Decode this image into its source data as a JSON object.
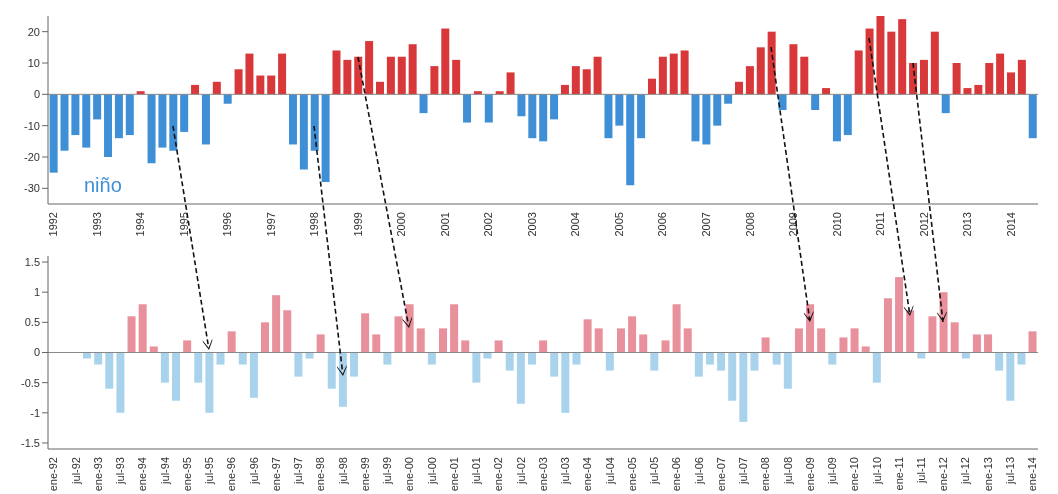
{
  "chart_data": [
    {
      "type": "bar",
      "stacked": true,
      "ylim": [
        -35,
        25
      ],
      "yticks": [
        -30,
        -20,
        -10,
        0,
        10,
        20
      ],
      "annotations": [
        "niño"
      ],
      "categories": [
        "1992",
        null,
        null,
        null,
        "1993",
        null,
        null,
        null,
        "1994",
        null,
        null,
        null,
        "1995",
        null,
        null,
        null,
        "1996",
        null,
        null,
        null,
        "1997",
        null,
        null,
        null,
        "1998",
        null,
        null,
        null,
        "1999",
        null,
        null,
        null,
        "2000",
        null,
        null,
        null,
        "2001",
        null,
        null,
        null,
        "2002",
        null,
        null,
        null,
        "2003",
        null,
        null,
        null,
        "2004",
        null,
        null,
        null,
        "2005",
        null,
        null,
        null,
        "2006",
        null,
        null,
        null,
        "2007",
        null,
        null,
        null,
        "2008",
        null,
        null,
        null,
        "2009",
        null,
        null,
        null,
        "2010",
        null,
        null,
        null,
        "2011",
        null,
        null,
        null,
        "2012",
        null,
        null,
        null,
        "2013",
        null,
        null,
        null,
        "2014",
        null,
        null
      ],
      "series": [
        {
          "color": "#d9383a",
          "values": [
            null,
            null,
            null,
            null,
            null,
            null,
            null,
            null,
            1,
            null,
            null,
            null,
            null,
            3,
            null,
            4,
            null,
            8,
            13,
            6,
            6,
            13,
            null,
            null,
            null,
            null,
            14,
            11,
            12,
            17,
            4,
            12,
            12,
            16,
            null,
            9,
            21,
            11,
            null,
            1,
            null,
            1,
            7,
            null,
            null,
            null,
            null,
            3,
            9,
            8,
            12,
            null,
            null,
            null,
            null,
            5,
            12,
            13,
            14,
            null,
            null,
            null,
            null,
            4,
            9,
            15,
            20,
            null,
            16,
            12,
            null,
            2,
            null,
            null,
            14,
            21,
            25,
            20,
            24,
            10,
            11,
            20,
            null,
            10,
            2,
            3,
            10,
            13,
            7,
            11,
            null
          ]
        },
        {
          "color": "#3f8fd6",
          "values": [
            -25,
            -18,
            -13,
            -17,
            -8,
            -20,
            -14,
            -13,
            null,
            -22,
            -17,
            -18,
            -12,
            null,
            -16,
            null,
            -3,
            null,
            null,
            null,
            null,
            null,
            -16,
            -24,
            -18,
            -28,
            null,
            null,
            null,
            null,
            null,
            null,
            null,
            null,
            -6,
            null,
            null,
            null,
            -9,
            null,
            -9,
            null,
            null,
            -7,
            -14,
            -15,
            -8,
            null,
            null,
            null,
            null,
            -14,
            -10,
            -29,
            -14,
            null,
            null,
            null,
            null,
            -15,
            -16,
            -10,
            -3,
            null,
            null,
            null,
            null,
            -5,
            null,
            null,
            -5,
            null,
            -15,
            -13,
            null,
            null,
            null,
            null,
            null,
            null,
            null,
            null,
            -6,
            null,
            null,
            null,
            null,
            null,
            null,
            null,
            -14
          ]
        }
      ]
    },
    {
      "type": "bar",
      "stacked": true,
      "ylim": [
        -1.6,
        1.6
      ],
      "yticks": [
        -1.5,
        -1,
        -0.5,
        0,
        0.5,
        1,
        1.5
      ],
      "categories": [
        "ene-92",
        null,
        "jul-92",
        null,
        "ene-93",
        null,
        "jul-93",
        null,
        "ene-94",
        null,
        "jul-94",
        null,
        "ene-95",
        null,
        "jul-95",
        null,
        "ene-96",
        null,
        "jul-96",
        null,
        "ene-97",
        null,
        "jul-97",
        null,
        "ene-98",
        null,
        "jul-98",
        null,
        "ene-99",
        null,
        "jul-99",
        null,
        "ene-00",
        null,
        "jul-00",
        null,
        "ene-01",
        null,
        "jul-01",
        null,
        "ene-02",
        null,
        "jul-02",
        null,
        "ene-03",
        null,
        "jul-03",
        null,
        "ene-04",
        null,
        "jul-04",
        null,
        "ene-05",
        null,
        "jul-05",
        null,
        "ene-06",
        null,
        "jul-06",
        null,
        "ene-07",
        null,
        "jul-07",
        null,
        "ene-08",
        null,
        "jul-08",
        null,
        "ene-09",
        null,
        "jul-09",
        null,
        "ene-10",
        null,
        "jul-10",
        null,
        "ene-11",
        null,
        "jul-11",
        null,
        "ene-12",
        null,
        "jul-12",
        null,
        "ene-13",
        null,
        "jul-13",
        null,
        "ene-14"
      ],
      "series": [
        {
          "color": "#e8909c",
          "values": [
            null,
            null,
            null,
            null,
            null,
            null,
            null,
            0.6,
            0.8,
            0.1,
            null,
            null,
            0.2,
            null,
            null,
            null,
            0.35,
            null,
            null,
            0.5,
            0.95,
            0.7,
            null,
            null,
            0.3,
            null,
            null,
            null,
            0.65,
            0.3,
            null,
            0.6,
            0.8,
            0.4,
            null,
            0.4,
            0.8,
            0.2,
            null,
            null,
            0.2,
            null,
            null,
            null,
            0.2,
            null,
            null,
            null,
            0.55,
            0.4,
            null,
            0.4,
            0.6,
            0.3,
            null,
            0.2,
            0.8,
            0.4,
            null,
            null,
            null,
            null,
            null,
            null,
            0.25,
            null,
            null,
            0.4,
            0.8,
            0.4,
            null,
            0.25,
            0.4,
            0.1,
            null,
            0.9,
            1.25,
            0.7,
            null,
            0.6,
            1,
            0.5,
            null,
            0.3,
            0.3,
            null,
            null,
            null,
            0.35
          ]
        },
        {
          "color": "#a9d3ec",
          "values": [
            null,
            null,
            null,
            -0.1,
            -0.2,
            -0.6,
            -1,
            null,
            null,
            null,
            -0.5,
            -0.8,
            null,
            -0.5,
            -1,
            -0.2,
            null,
            -0.2,
            -0.75,
            null,
            null,
            null,
            -0.4,
            -0.1,
            null,
            -0.6,
            -0.9,
            -0.4,
            null,
            null,
            -0.2,
            null,
            null,
            null,
            -0.2,
            null,
            null,
            null,
            -0.5,
            -0.1,
            null,
            -0.3,
            -0.85,
            -0.2,
            null,
            -0.4,
            -1,
            -0.2,
            null,
            null,
            -0.3,
            null,
            null,
            null,
            -0.3,
            null,
            null,
            null,
            -0.4,
            -0.2,
            -0.3,
            -0.8,
            -1.15,
            -0.3,
            null,
            -0.2,
            -0.6,
            null,
            null,
            null,
            -0.2,
            null,
            null,
            null,
            -0.5,
            null,
            null,
            null,
            -0.1,
            null,
            null,
            null,
            -0.1,
            null,
            null,
            -0.3,
            -0.8,
            -0.2,
            null
          ]
        }
      ]
    }
  ]
}
